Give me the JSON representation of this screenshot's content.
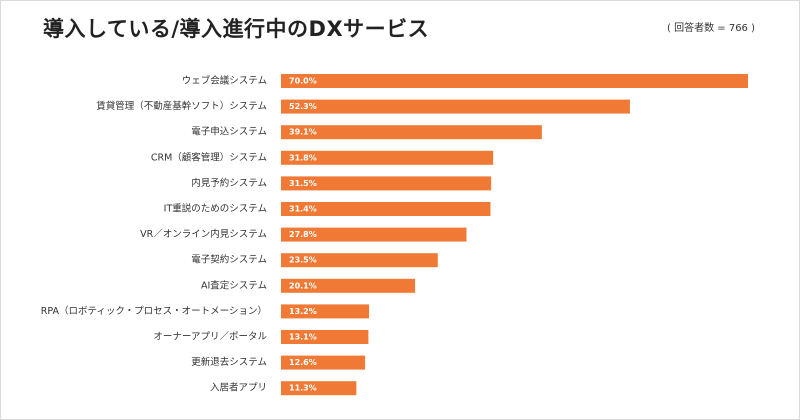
{
  "header": {
    "title": "導入している/導入進行中のDXサービス",
    "respondents": "( 回答者数 = 766 )"
  },
  "chart_data": {
    "type": "bar",
    "orientation": "horizontal",
    "title": "導入している/導入進行中のDXサービス",
    "categories": [
      "ウェブ会議システム",
      "賃貸管理（不動産基幹ソフト）システム",
      "電子申込システム",
      "CRM（顧客管理）システム",
      "内見予約システム",
      "IT重説のためのシステム",
      "VR／オンライン内見システム",
      "電子契約システム",
      "AI査定システム",
      "RPA（ロボティック・プロセス・オートメーション）",
      "オーナーアプリ／ポータル",
      "更新退去システム",
      "入居者アプリ"
    ],
    "values": [
      70.0,
      52.3,
      39.1,
      31.8,
      31.5,
      31.4,
      27.8,
      23.5,
      20.1,
      13.2,
      13.1,
      12.6,
      11.3
    ],
    "value_labels": [
      "70.0%",
      "52.3%",
      "39.1%",
      "31.8%",
      "31.5%",
      "31.4%",
      "27.8%",
      "23.5%",
      "20.1%",
      "13.2%",
      "13.1%",
      "12.6%",
      "11.3%"
    ],
    "xlim": [
      0,
      70
    ],
    "grid": false,
    "bar_color": "#f07a35"
  }
}
